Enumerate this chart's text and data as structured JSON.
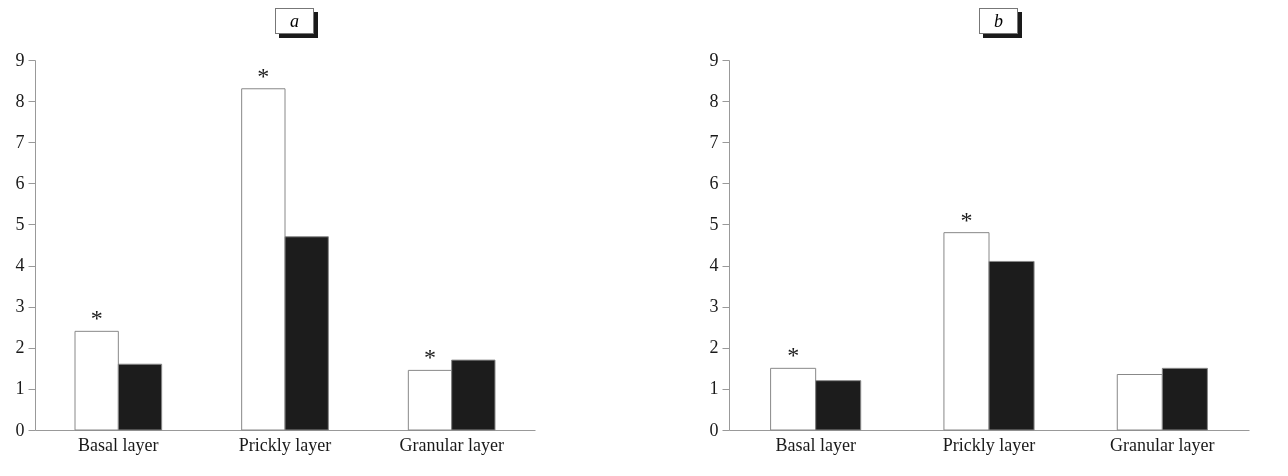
{
  "chart_data": [
    {
      "type": "bar",
      "title": "a",
      "categories": [
        "Basal layer",
        "Prickly layer",
        "Granular layer"
      ],
      "series": [
        {
          "color": "#ffffff",
          "values": [
            2.4,
            8.3,
            1.45
          ]
        },
        {
          "color": "#1c1c1c",
          "values": [
            1.6,
            4.7,
            1.7
          ]
        }
      ],
      "ylim": [
        0,
        9
      ],
      "yticks": [
        0,
        1,
        2,
        3,
        4,
        5,
        6,
        7,
        8,
        9
      ],
      "grid": false,
      "annotations": [
        {
          "text": "*",
          "x": "Basal layer",
          "y": 2.4
        },
        {
          "text": "*",
          "x": "Prickly layer",
          "y": 8.3
        },
        {
          "text": "*",
          "x": "Granular layer",
          "y": 1.45
        }
      ]
    },
    {
      "type": "bar",
      "title": "b",
      "categories": [
        "Basal layer",
        "Prickly layer",
        "Granular layer"
      ],
      "series": [
        {
          "color": "#ffffff",
          "values": [
            1.5,
            4.8,
            1.35
          ]
        },
        {
          "color": "#1c1c1c",
          "values": [
            1.2,
            4.1,
            1.5
          ]
        }
      ],
      "ylim": [
        0,
        9
      ],
      "yticks": [
        0,
        1,
        2,
        3,
        4,
        5,
        6,
        7,
        8,
        9
      ],
      "grid": false,
      "annotations": [
        {
          "text": "*",
          "x": "Basal layer",
          "y": 1.5
        },
        {
          "text": "*",
          "x": "Prickly layer",
          "y": 4.8
        }
      ]
    }
  ]
}
